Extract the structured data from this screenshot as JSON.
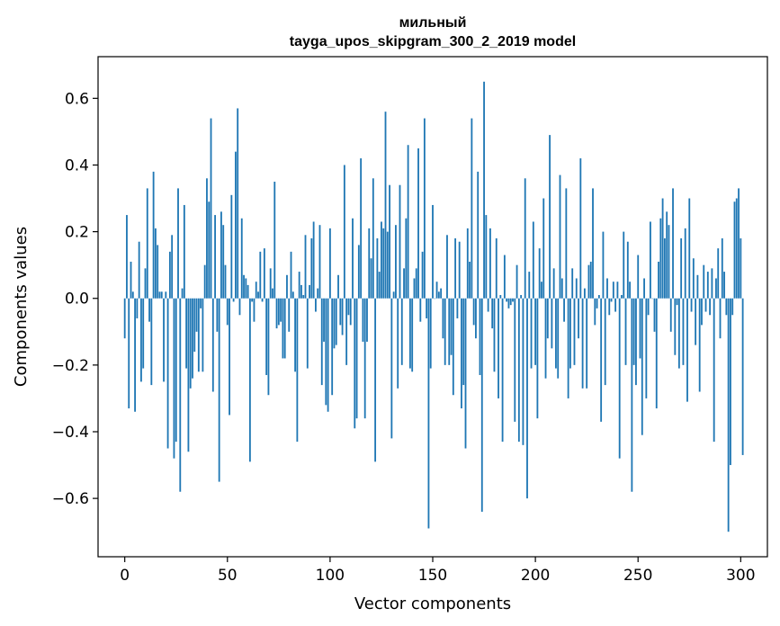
{
  "chart_data": {
    "type": "bar",
    "title": "мильный",
    "subtitle": "tayga_upos_skipgram_300_2_2019 model",
    "xlabel": "Vector components",
    "ylabel": "Components values",
    "xlim": [
      -13,
      313
    ],
    "ylim": [
      -0.775,
      0.725
    ],
    "xticks": [
      0,
      50,
      100,
      150,
      200,
      250,
      300
    ],
    "xtick_labels": [
      "0",
      "50",
      "100",
      "150",
      "200",
      "250",
      "300"
    ],
    "yticks": [
      -0.6,
      -0.4,
      -0.2,
      0.0,
      0.2,
      0.4,
      0.6
    ],
    "ytick_labels": [
      "−0.6",
      "−0.4",
      "−0.2",
      "0.0",
      "0.2",
      "0.4",
      "0.6"
    ],
    "bar_color": "#1f77b4",
    "grid": false,
    "values": [
      -0.12,
      0.25,
      -0.33,
      0.11,
      0.02,
      -0.34,
      -0.06,
      0.17,
      -0.25,
      -0.21,
      0.09,
      0.33,
      -0.07,
      -0.26,
      0.38,
      0.21,
      0.16,
      0.02,
      0.02,
      -0.25,
      0.02,
      -0.45,
      0.14,
      0.19,
      -0.48,
      -0.43,
      0.33,
      -0.58,
      0.03,
      0.28,
      -0.21,
      -0.46,
      -0.27,
      -0.24,
      -0.16,
      -0.1,
      -0.22,
      -0.03,
      -0.22,
      0.1,
      0.36,
      0.29,
      0.54,
      -0.28,
      0.25,
      -0.1,
      -0.55,
      0.26,
      0.22,
      0.1,
      -0.08,
      -0.35,
      0.31,
      -0.01,
      0.44,
      0.57,
      -0.05,
      0.24,
      0.07,
      0.06,
      0.04,
      -0.49,
      -0.01,
      -0.07,
      0.05,
      0.02,
      0.14,
      -0.01,
      0.15,
      -0.23,
      -0.29,
      0.09,
      0.03,
      0.35,
      -0.09,
      -0.08,
      -0.07,
      -0.18,
      -0.18,
      0.07,
      -0.1,
      0.14,
      0.02,
      -0.22,
      -0.43,
      0.08,
      0.04,
      0.01,
      0.19,
      -0.21,
      0.04,
      0.18,
      0.23,
      -0.04,
      0.03,
      0.22,
      -0.26,
      -0.13,
      -0.32,
      -0.34,
      0.21,
      -0.29,
      -0.15,
      -0.14,
      0.07,
      -0.08,
      -0.11,
      0.4,
      -0.2,
      -0.05,
      -0.08,
      0.24,
      -0.39,
      -0.36,
      0.16,
      0.42,
      -0.13,
      -0.36,
      -0.13,
      0.21,
      0.12,
      0.36,
      -0.49,
      0.18,
      0.08,
      0.23,
      0.21,
      0.56,
      0.2,
      0.34,
      -0.42,
      0.02,
      0.22,
      -0.27,
      0.34,
      -0.2,
      0.09,
      0.24,
      0.46,
      -0.21,
      -0.22,
      0.06,
      0.09,
      0.45,
      -0.07,
      0.14,
      0.54,
      -0.06,
      -0.69,
      -0.21,
      0.28,
      0.0,
      0.05,
      0.02,
      0.03,
      -0.12,
      -0.2,
      0.19,
      -0.2,
      -0.17,
      -0.29,
      0.18,
      -0.06,
      0.17,
      -0.33,
      -0.26,
      -0.45,
      0.21,
      0.11,
      0.54,
      -0.08,
      -0.12,
      0.38,
      -0.23,
      -0.64,
      0.65,
      0.25,
      -0.04,
      0.21,
      -0.09,
      -0.22,
      0.18,
      -0.3,
      0.01,
      -0.43,
      0.13,
      -0.01,
      -0.03,
      -0.02,
      -0.01,
      -0.37,
      0.1,
      -0.43,
      0.01,
      -0.44,
      0.36,
      -0.6,
      0.08,
      -0.21,
      0.23,
      -0.2,
      -0.36,
      0.15,
      0.05,
      0.3,
      -0.24,
      -0.12,
      0.49,
      -0.15,
      0.09,
      -0.21,
      -0.24,
      0.37,
      0.06,
      -0.07,
      0.33,
      -0.3,
      -0.21,
      0.09,
      -0.2,
      0.06,
      -0.12,
      0.42,
      -0.27,
      0.03,
      -0.27,
      0.1,
      0.11,
      0.33,
      -0.08,
      -0.03,
      0.01,
      -0.37,
      0.2,
      -0.26,
      0.06,
      -0.05,
      -0.01,
      0.05,
      -0.04,
      0.05,
      -0.48,
      0.01,
      0.2,
      -0.2,
      0.17,
      0.05,
      -0.58,
      -0.2,
      -0.26,
      0.13,
      -0.18,
      -0.41,
      0.06,
      -0.3,
      -0.05,
      0.23,
      0.0,
      -0.1,
      -0.33,
      0.11,
      0.24,
      0.3,
      0.18,
      0.26,
      0.22,
      -0.1,
      0.33,
      -0.17,
      -0.02,
      -0.21,
      0.18,
      -0.2,
      0.21,
      -0.31,
      0.3,
      -0.04,
      0.12,
      -0.14,
      0.07,
      -0.28,
      -0.08,
      0.1,
      -0.04,
      0.08,
      -0.05,
      0.09,
      -0.43,
      0.06,
      0.15,
      -0.12,
      0.18,
      0.08,
      -0.05,
      -0.7,
      -0.5,
      -0.05,
      0.29,
      0.3,
      0.33,
      0.18,
      -0.47
    ]
  }
}
